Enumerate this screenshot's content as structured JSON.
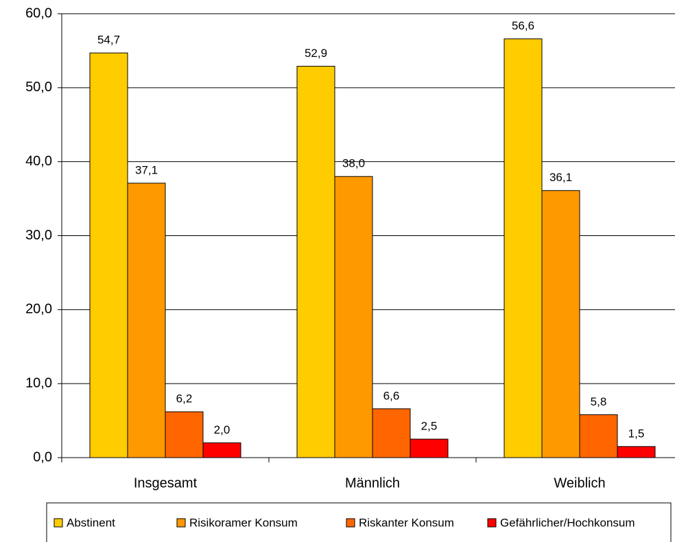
{
  "chart_data": {
    "type": "bar",
    "categories": [
      "Insgesamt",
      "Männlich",
      "Weiblich"
    ],
    "series": [
      {
        "name": "Abstinent",
        "color": "#FFCC00",
        "values": [
          54.7,
          52.9,
          56.6
        ],
        "value_labels": [
          "54,7",
          "52,9",
          "56,6"
        ]
      },
      {
        "name": "Risikoramer Konsum",
        "color": "#FF9900",
        "values": [
          37.1,
          38.0,
          36.1
        ],
        "value_labels": [
          "37,1",
          "38,0",
          "36,1"
        ]
      },
      {
        "name": "Riskanter Konsum",
        "color": "#FF6600",
        "values": [
          6.2,
          6.6,
          5.8
        ],
        "value_labels": [
          "6,2",
          "6,6",
          "5,8"
        ]
      },
      {
        "name": "Gefährlicher/Hochkonsum",
        "color": "#FF0000",
        "values": [
          2.0,
          2.5,
          1.5
        ],
        "value_labels": [
          "2,0",
          "2,5",
          "1,5"
        ]
      }
    ],
    "ylim": [
      0,
      60
    ],
    "yticks": [
      {
        "value": 0,
        "label": "0,0"
      },
      {
        "value": 10,
        "label": "10,0"
      },
      {
        "value": 20,
        "label": "20,0"
      },
      {
        "value": 30,
        "label": "30,0"
      },
      {
        "value": 40,
        "label": "40,0"
      },
      {
        "value": 50,
        "label": "50,0"
      },
      {
        "value": 60,
        "label": "60,0"
      }
    ],
    "grid": true,
    "legend": "bottom"
  }
}
